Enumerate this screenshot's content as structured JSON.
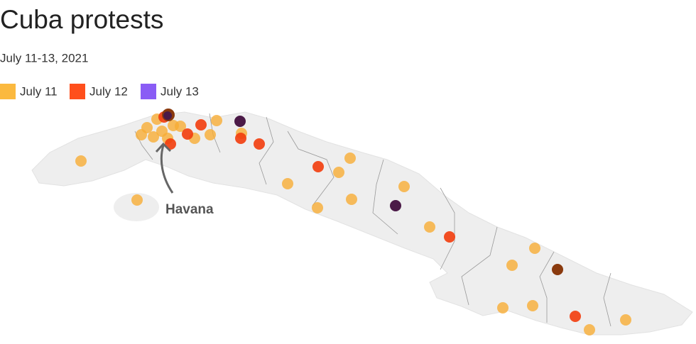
{
  "title": "Cuba protests",
  "subtitle": "July 11-13, 2021",
  "legend": [
    {
      "name": "July 11",
      "color": "#fbb93f"
    },
    {
      "name": "July 12",
      "color": "#ff4f1c"
    },
    {
      "name": "July 13",
      "color": "#8a5cf5"
    }
  ],
  "annotation": "Havana"
}
